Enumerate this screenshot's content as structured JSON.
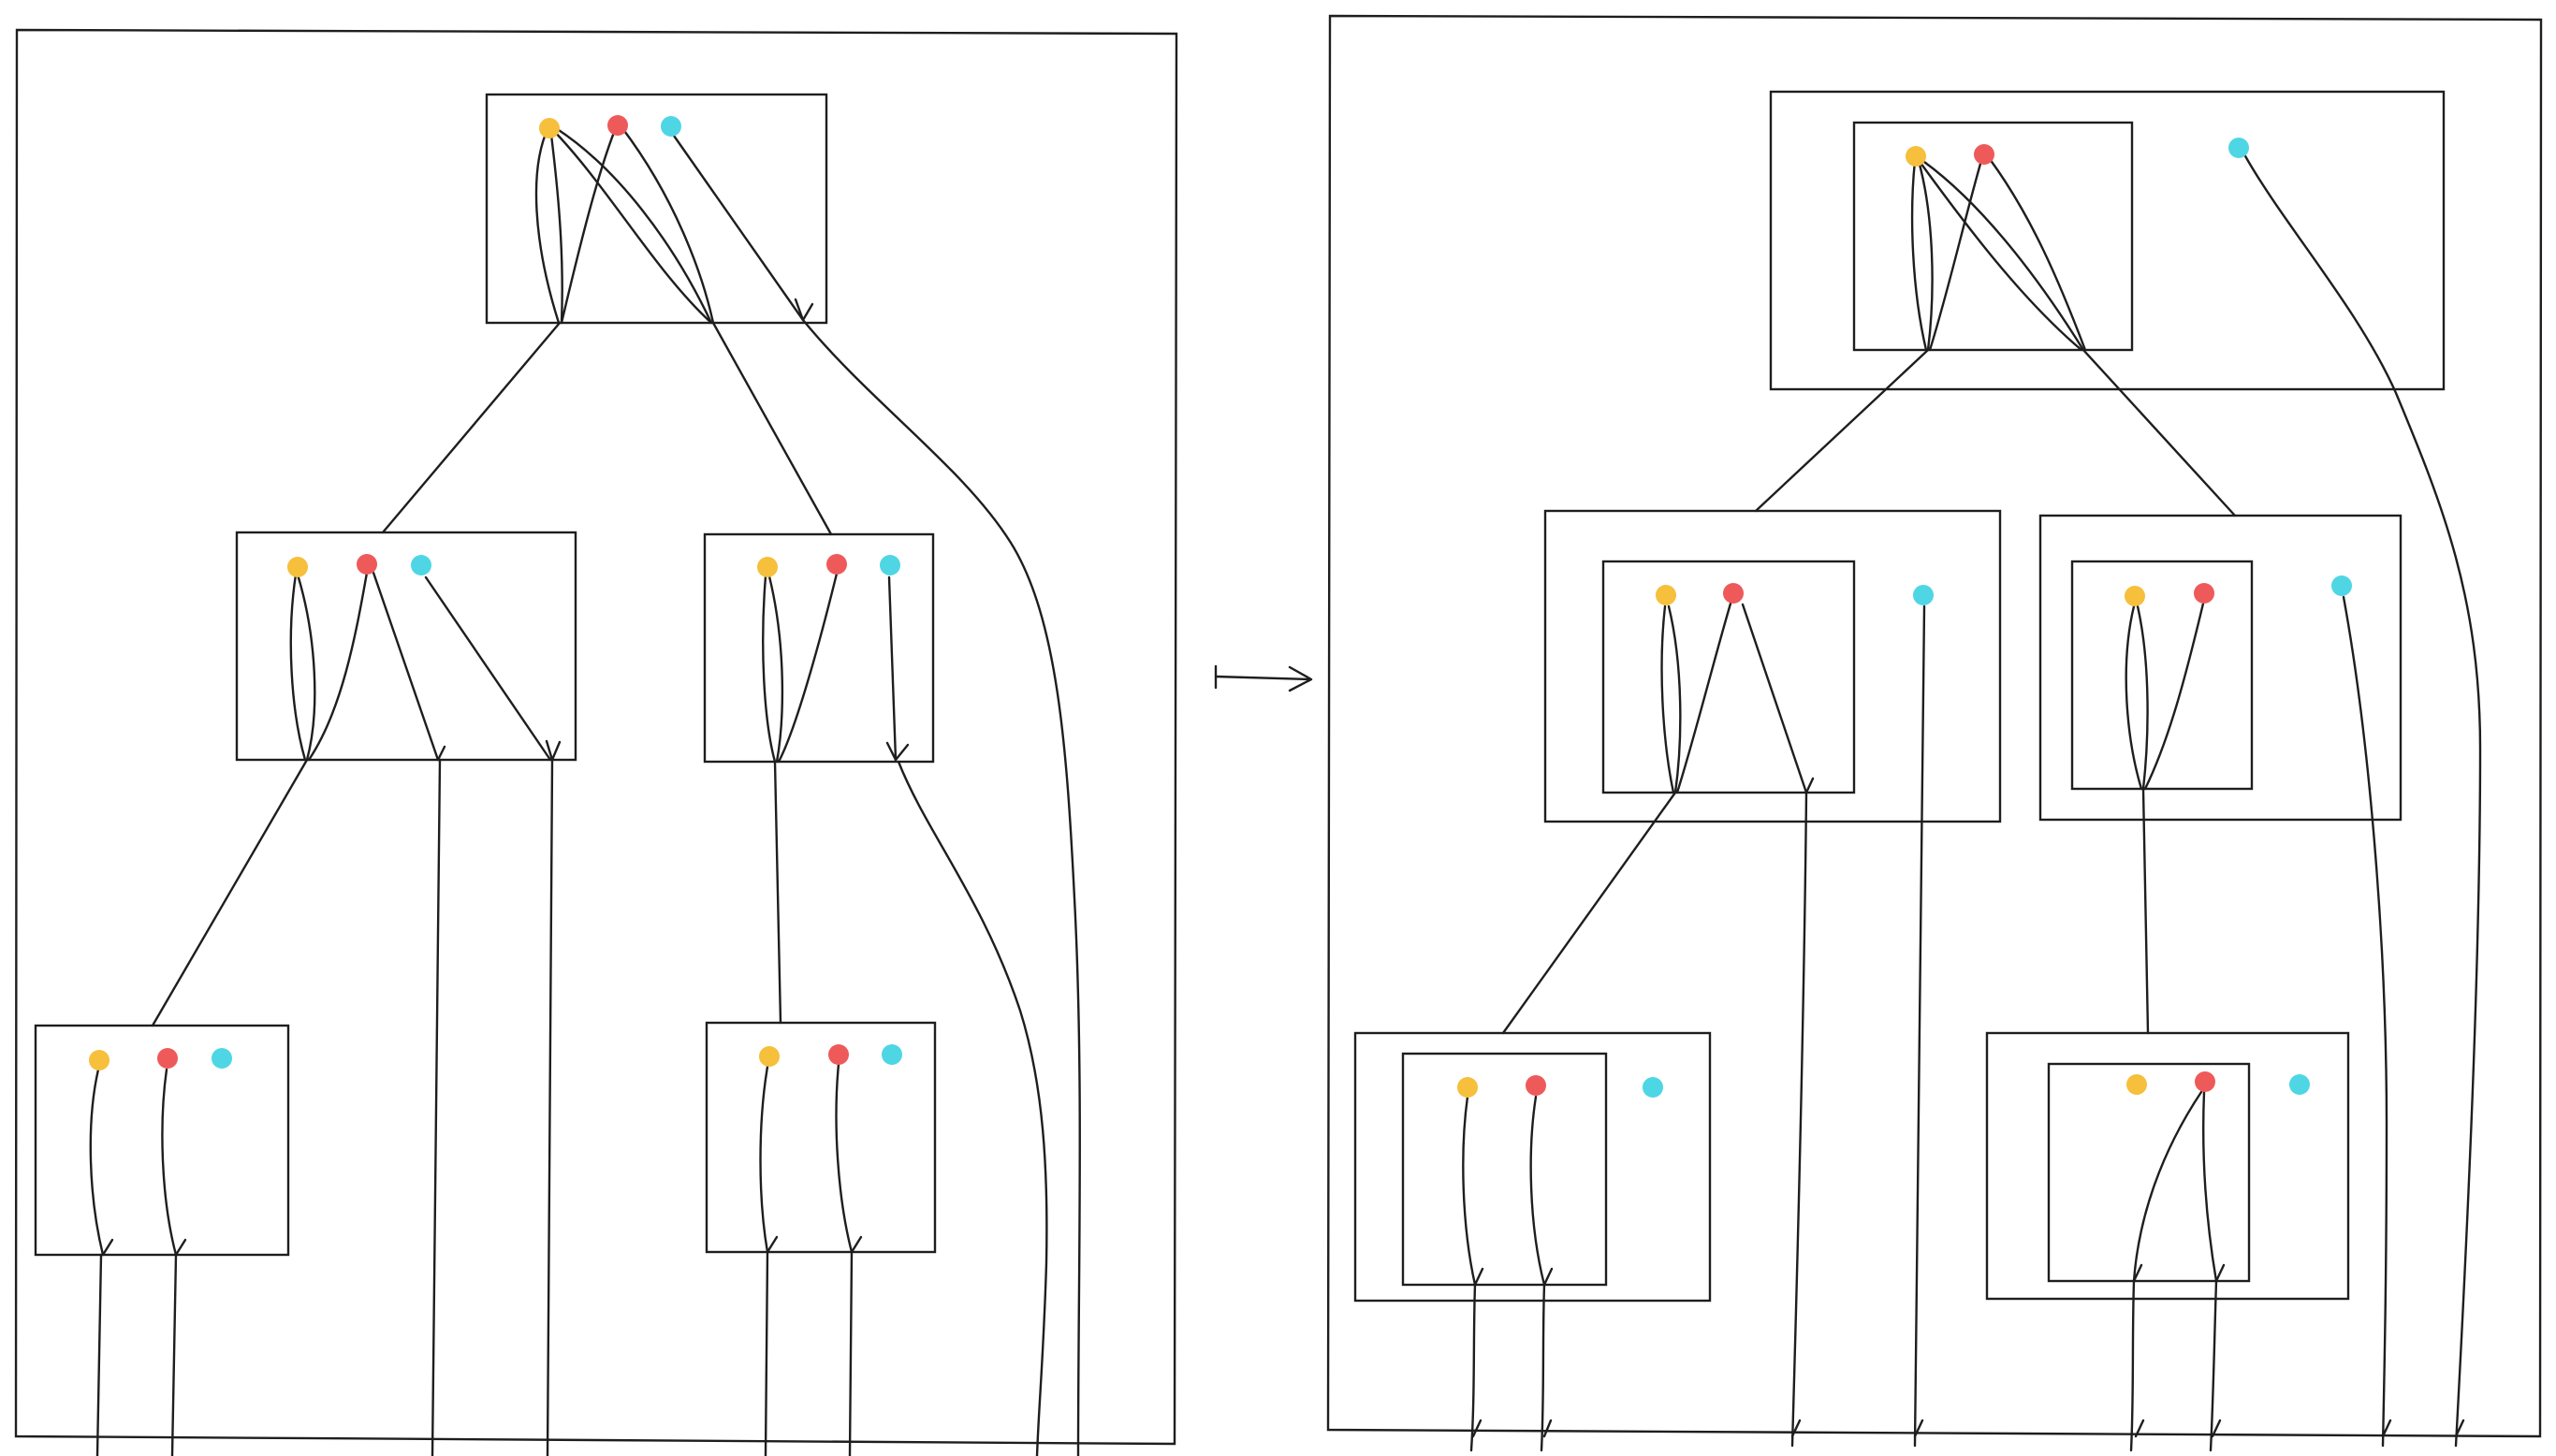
{
  "palette": {
    "ink": "#1e1e1e",
    "background": "#ffffff",
    "dot_yellow": "#f6bf3c",
    "dot_red": "#ee5a5a",
    "dot_cyan": "#4fd6e4"
  },
  "diagram": {
    "kind": "tree-transformation",
    "panels": [
      "before",
      "after"
    ],
    "connector_symbol": "maps-to-arrow",
    "dot_order_in_each_node": [
      "yellow",
      "red",
      "cyan"
    ],
    "left_tree": {
      "levels": 3,
      "nodes": 5,
      "dots_per_node": 3
    },
    "right_tree": {
      "levels": 3,
      "nodes": 5,
      "dots_per_node": 3,
      "nested_inner_box_holds": [
        "yellow",
        "red"
      ]
    }
  }
}
